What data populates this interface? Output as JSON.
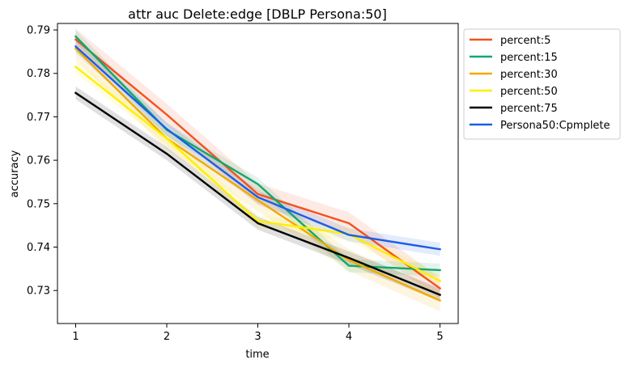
{
  "chart_data": {
    "type": "line",
    "title": "attr auc Delete:edge [DBLP Persona:50]",
    "xlabel": "time",
    "ylabel": "accuracy",
    "x": [
      1,
      2,
      3,
      4,
      5
    ],
    "xticks": [
      "1",
      "2",
      "3",
      "4",
      "5"
    ],
    "xlim": [
      0.8,
      5.2
    ],
    "ylim": [
      0.7224,
      0.7915
    ],
    "yticks": [
      "0.73",
      "0.74",
      "0.75",
      "0.76",
      "0.77",
      "0.78",
      "0.79"
    ],
    "ytick_values": [
      0.73,
      0.74,
      0.75,
      0.76,
      0.77,
      0.78,
      0.79
    ],
    "grid": false,
    "legend": "outside-top-right",
    "series": [
      {
        "name": "percent:5",
        "color": "#f4511e",
        "values": [
          0.7878,
          0.7705,
          0.7522,
          0.7455,
          0.7305
        ],
        "band": 0.0025
      },
      {
        "name": "percent:15",
        "color": "#10a86e",
        "values": [
          0.7885,
          0.767,
          0.7545,
          0.7357,
          0.7347
        ],
        "band": 0.0015
      },
      {
        "name": "percent:30",
        "color": "#f2a900",
        "values": [
          0.7857,
          0.765,
          0.7508,
          0.737,
          0.7277
        ],
        "band": 0.0025
      },
      {
        "name": "percent:50",
        "color": "#ffee00",
        "values": [
          0.7815,
          0.765,
          0.746,
          0.743,
          0.7322
        ],
        "band": 0.0015
      },
      {
        "name": "percent:75",
        "color": "#000000",
        "values": [
          0.7755,
          0.7615,
          0.7455,
          0.7375,
          0.729
        ],
        "band": 0.0015
      },
      {
        "name": "Persona50:Cpmplete",
        "color": "#1a5ee6",
        "values": [
          0.7862,
          0.7672,
          0.7515,
          0.7428,
          0.7395
        ],
        "band": 0.0015
      }
    ]
  }
}
